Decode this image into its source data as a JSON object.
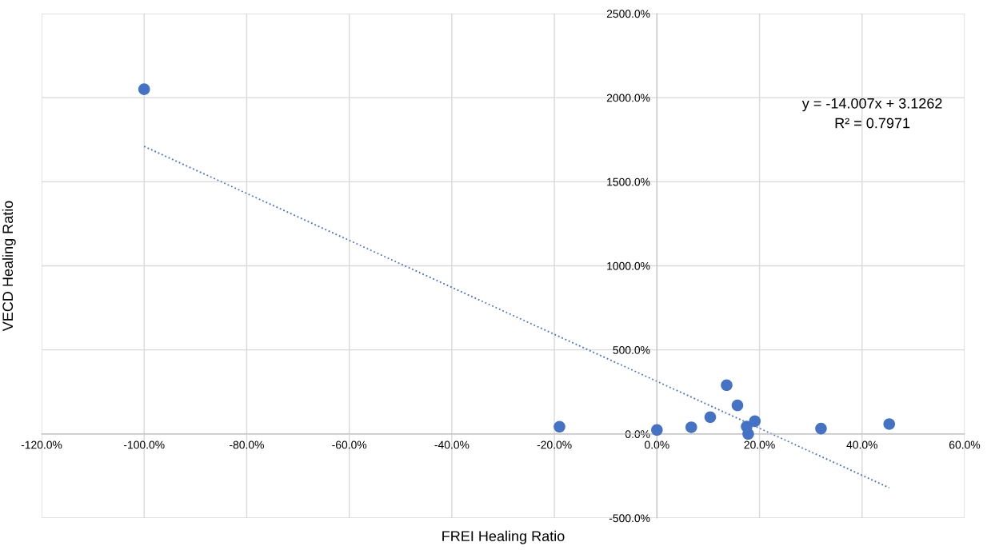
{
  "chart_data": {
    "type": "scatter",
    "xlabel": "FREI Healing Ratio",
    "ylabel": "VECD Healing Ratio",
    "annotations": [
      "y = -14.007x + 3.1262\nR² = 0.7971"
    ],
    "series": [
      {
        "color": "#4472c4",
        "marker": "circle",
        "x": [
          -100,
          -19,
          0,
          6.7,
          10.4,
          13.6,
          15.7,
          17.5,
          17.8,
          19.1,
          32,
          45.3
        ],
        "values": [
          2050,
          43,
          24,
          40,
          100,
          290,
          170,
          44,
          0,
          76,
          32,
          59
        ]
      },
      {
        "type": "line",
        "color": "#4472c4",
        "line_style": "dotted",
        "marker": "none",
        "x": [
          -100,
          45.3
        ],
        "values": [
          1710,
          -320
        ]
      }
    ],
    "xlim": [
      -120,
      60
    ],
    "ylim": [
      -500,
      2500
    ],
    "xticks": [
      {
        "value": -120,
        "label": "-120.0%"
      },
      {
        "value": -100,
        "label": "-100.0%"
      },
      {
        "value": -80,
        "label": "-80.0%"
      },
      {
        "value": -60,
        "label": "-60.0%"
      },
      {
        "value": -40,
        "label": "-40.0%"
      },
      {
        "value": -20,
        "label": "-20.0%"
      },
      {
        "value": 0,
        "label": "0.0%"
      },
      {
        "value": 20,
        "label": "20.0%"
      },
      {
        "value": 40,
        "label": "40.0%"
      },
      {
        "value": 60,
        "label": "60.0%"
      }
    ],
    "yticks": [
      {
        "value": -500,
        "label": "-500.0%"
      },
      {
        "value": 0,
        "label": "0.0%"
      },
      {
        "value": 500,
        "label": "500.0%"
      },
      {
        "value": 1000,
        "label": "1000.0%"
      },
      {
        "value": 1500,
        "label": "1500.0%"
      },
      {
        "value": 2000,
        "label": "2000.0%"
      },
      {
        "value": 2500,
        "label": "2500.0%"
      }
    ],
    "grid": true
  }
}
